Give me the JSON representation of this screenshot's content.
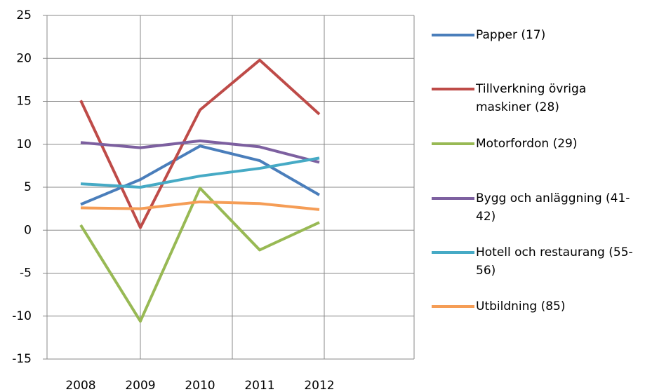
{
  "chart_data": {
    "type": "line",
    "categories": [
      "2008",
      "2009",
      "2010",
      "2011",
      "2012"
    ],
    "ylim": [
      -15,
      25
    ],
    "yticks": [
      -15,
      -10,
      -5,
      0,
      5,
      10,
      15,
      20,
      25
    ],
    "grid": true,
    "legend": "right",
    "series": [
      {
        "name": "Papper (17)",
        "color": "#4a7ebb",
        "values": [
          3.0,
          5.9,
          9.8,
          8.1,
          4.1
        ]
      },
      {
        "name": "Tillverkning övriga maskiner (28)",
        "color": "#be4b48",
        "values": [
          15.1,
          0.3,
          14.0,
          19.8,
          13.5
        ]
      },
      {
        "name": "Motorfordon (29)",
        "color": "#98b954",
        "values": [
          0.6,
          -10.6,
          4.9,
          -2.3,
          0.9
        ]
      },
      {
        "name": "Bygg och anläggning (41-42)",
        "color": "#7d60a0",
        "values": [
          10.2,
          9.6,
          10.4,
          9.7,
          7.9
        ]
      },
      {
        "name": "Hotell och restaurang (55-56)",
        "color": "#46aac5",
        "values": [
          5.4,
          5.0,
          6.3,
          7.2,
          8.4
        ]
      },
      {
        "name": "Utbildning (85)",
        "color": "#f59d56",
        "values": [
          2.6,
          2.5,
          3.3,
          3.1,
          2.4
        ]
      }
    ]
  }
}
